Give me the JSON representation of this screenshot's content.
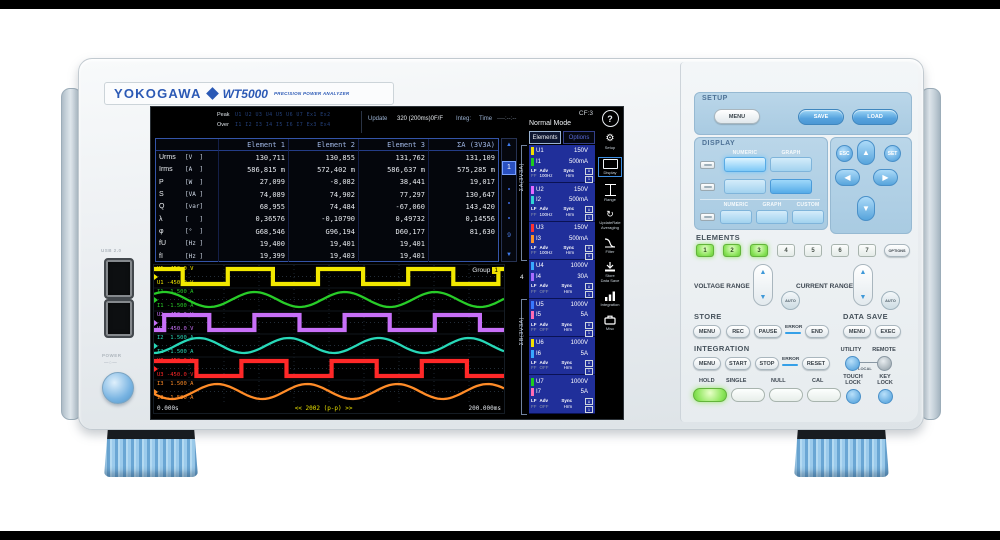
{
  "brand": {
    "name": "YOKOGAWA",
    "model": "WT5000",
    "tagline": "PRECISION POWER ANALYZER"
  },
  "left_side": {
    "usb_label": "USB 2.0",
    "power_label": "POWER"
  },
  "screen": {
    "status": {
      "peak_label": "Peak",
      "over_label": "Over",
      "peak_row1": "U1 U2 U3 U4 U5 U6 U7 Ex1 Ex2",
      "peak_row2": "I1 I2 I3 I4 I5 I6 I7 Ex3 Ex4",
      "update_label": "Update",
      "update_value": "320 (200ms)0F/F",
      "integ_label": "Integ:",
      "time_label": "Time",
      "time_value": "----:--:--",
      "mode": "Normal Mode",
      "cf": "CF:3"
    },
    "table": {
      "headers": [
        "Element 1",
        "Element 2",
        "Element 3",
        "ΣA (3V3A)"
      ],
      "rows": [
        {
          "name": "Urms",
          "unit": "[V  ]",
          "values": [
            "130,711",
            "130,855",
            "131,762",
            "131,109"
          ]
        },
        {
          "name": "Irms",
          "unit": "[A  ]",
          "values": [
            "586,815 m",
            "572,402 m",
            "586,637 m",
            "575,285 m"
          ]
        },
        {
          "name": "P",
          "unit": "[W  ]",
          "values": [
            "27,099",
            "-8,082",
            "38,441",
            "19,017"
          ]
        },
        {
          "name": "S",
          "unit": "[VA ]",
          "values": [
            "74,089",
            "74,902",
            "77,297",
            "130,647"
          ]
        },
        {
          "name": "Q",
          "unit": "[var]",
          "values": [
            "68,955",
            "74,484",
            "-67,060",
            "143,420"
          ]
        },
        {
          "name": "λ",
          "unit": "[   ]",
          "values": [
            "0,36576",
            "-0,10790",
            "0,49732",
            "0,14556"
          ]
        },
        {
          "name": "φ",
          "unit": "[°  ]",
          "values": [
            "G68,546",
            "G96,194",
            "D60,177",
            "81,630"
          ]
        },
        {
          "name": "fU",
          "unit": "[Hz ]",
          "values": [
            "19,400",
            "19,401",
            "19,401",
            ""
          ]
        },
        {
          "name": "fI",
          "unit": "[Hz ]",
          "values": [
            "19,399",
            "19,403",
            "19,401",
            ""
          ]
        }
      ]
    },
    "pager": {
      "current": "1",
      "last": "9",
      "up": "▲",
      "down": "▼"
    },
    "sidebar": {
      "tabs": [
        "Elements",
        "Options"
      ],
      "wiring_a": "ΣA(3V3A)",
      "wiring_b": "ΣB(3V3A)",
      "mid_num": "4",
      "groups": [
        {
          "u": "U1",
          "u_range": "150V",
          "u_color": "#f2e000",
          "i": "I1",
          "i_range": "500mA",
          "i_color": "#1ecc1e",
          "lf": "LF",
          "ff": "FF",
          "adv": "Adv",
          "freq": "100Hz",
          "freq_on": true,
          "sync": "Sync",
          "hrm": "Hrm",
          "box_u": "U",
          "box_n": "1"
        },
        {
          "u": "U2",
          "u_range": "150V",
          "u_color": "#e468ff",
          "i": "I2",
          "i_range": "500mA",
          "i_color": "#30d4d4",
          "lf": "LF",
          "ff": "FF",
          "adv": "Adv",
          "freq": "100Hz",
          "freq_on": true,
          "sync": "Sync",
          "hrm": "Hrm",
          "box_u": "U",
          "box_n": "1"
        },
        {
          "u": "U3",
          "u_range": "150V",
          "u_color": "#ff3232",
          "i": "I3",
          "i_range": "500mA",
          "i_color": "#ff9428",
          "lf": "LF",
          "ff": "FF",
          "adv": "Adv",
          "freq": "100Hz",
          "freq_on": true,
          "sync": "Sync",
          "hrm": "Hrm",
          "box_u": "U",
          "box_n": "1"
        },
        {
          "u": "U4",
          "u_range": "1000V",
          "u_color": "#38a8ff",
          "i": "I4",
          "i_range": "30A",
          "i_color": "#a86cff",
          "lf": "LF",
          "ff": "FF",
          "adv": "Adv",
          "freq": "OFF",
          "freq_on": false,
          "sync": "Sync",
          "hrm": "Hrm",
          "box_u": "U",
          "box_n": "1"
        },
        {
          "u": "U5",
          "u_range": "1000V",
          "u_color": "#3878ff",
          "i": "I5",
          "i_range": "5A",
          "i_color": "#ff6cb4",
          "lf": "LF",
          "ff": "FF",
          "adv": "Adv",
          "freq": "OFF",
          "freq_on": false,
          "sync": "Sync",
          "hrm": "Hrm",
          "box_u": "U",
          "box_n": "1"
        },
        {
          "u": "U6",
          "u_range": "1000V",
          "u_color": "#f2e000",
          "i": "I6",
          "i_range": "5A",
          "i_color": "#38a8ff",
          "lf": "LF",
          "ff": "FF",
          "adv": "Adv",
          "freq": "OFF",
          "freq_on": false,
          "sync": "Sync",
          "hrm": "Hrm",
          "box_u": "U",
          "box_n": "1"
        },
        {
          "u": "U7",
          "u_range": "1000V",
          "u_color": "#1ecc1e",
          "i": "I7",
          "i_range": "5A",
          "i_color": "#ff6cb4",
          "lf": "LF",
          "ff": "FF",
          "adv": "Adv",
          "freq": "OFF",
          "freq_on": false,
          "sync": "Sync",
          "hrm": "Hrm",
          "box_u": "U",
          "box_n": "1"
        }
      ]
    },
    "icons": {
      "help": "?",
      "setup": "Setup",
      "setup_glyph": "⚙",
      "display": "Display",
      "range": "Range",
      "update_glyph": "↻",
      "update_line1": "UpdateRate",
      "update_line2": "Averaging",
      "filter": "Filter",
      "store_line1": "Store",
      "store_line2": "Data Save",
      "integration": "Integration",
      "misc": "Misc"
    }
  },
  "waveform": {
    "group_label": "Group",
    "group_num": "1",
    "t_start": "0.000s",
    "t_center": "<< 2002 (p-p) >>",
    "t_end": "200.000ms",
    "period": 0.2577,
    "traces": [
      {
        "label_top": "U1  450.0 V",
        "label_bottom": "U1 -450.0 V",
        "color": "#f2e800",
        "type": "square",
        "fall": 0.082
      },
      {
        "label_top": "I1  1.500 A",
        "label_bottom": "I1 -1.500 A",
        "color": "#28cc28",
        "type": "sine",
        "peak": 0.03
      },
      {
        "label_top": "U2  450.0 V",
        "label_bottom": "U2 -450.0 V",
        "color": "#c870f8",
        "type": "square",
        "fall": 0.158
      },
      {
        "label_top": "I2  1.500 A",
        "label_bottom": "I2 -1.500 A",
        "color": "#28d8b8",
        "type": "sine",
        "peak": 0.127
      },
      {
        "label_top": "U3  450.0 V",
        "label_bottom": "U3 -450.0 V",
        "color": "#ff2828",
        "type": "square",
        "fall": 0.121
      },
      {
        "label_top": "I3  1.500 A",
        "label_bottom": "I3 -1.500 A",
        "color": "#ff8c28",
        "type": "sine",
        "peak": 0.18
      }
    ]
  },
  "panel": {
    "setup": {
      "label": "SETUP",
      "menu": "MENU",
      "save": "SAVE",
      "load": "LOAD"
    },
    "display": {
      "label": "DISPLAY",
      "numeric": "NUMERIC",
      "graph": "GRAPH",
      "custom": "CUSTOM"
    },
    "nav": {
      "esc": "ESC",
      "set": "SET",
      "up": "▲",
      "down": "▼",
      "left": "◀",
      "right": "▶"
    },
    "elements": {
      "label": "ELEMENTS",
      "buttons": [
        "1",
        "2",
        "3",
        "4",
        "5",
        "6",
        "7"
      ],
      "options": "OPTIONS"
    },
    "ranges": {
      "voltage_label": "VOLTAGE RANGE",
      "current_label": "CURRENT RANGE",
      "auto": "AUTO",
      "up": "▲",
      "down": "▼"
    },
    "store": {
      "label": "STORE",
      "menu": "MENU",
      "rec": "REC",
      "pause": "PAUSE",
      "error": "ERROR",
      "end": "END"
    },
    "data_save": {
      "label": "DATA SAVE",
      "menu": "MENU",
      "exec": "EXEC"
    },
    "integration": {
      "label": "INTEGRATION",
      "menu": "MENU",
      "start": "START",
      "stop": "STOP",
      "error": "ERROR",
      "reset": "RESET"
    },
    "utility": {
      "utility_label": "UTILITY",
      "remote_label": "REMOTE",
      "local_label": "LOCAL"
    },
    "bottom": {
      "hold": "HOLD",
      "single": "SINGLE",
      "null_label": "NULL",
      "cal": "CAL",
      "touch_lock": "TOUCH LOCK",
      "key_lock": "KEY LOCK"
    }
  }
}
